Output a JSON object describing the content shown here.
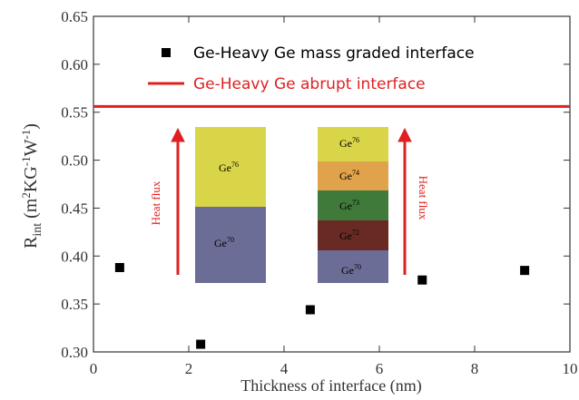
{
  "chart_data": {
    "type": "scatter",
    "x_label": "Thickness of interface (nm)",
    "y_label_parts": [
      "R",
      "int",
      " (m",
      "2",
      "KG",
      "-1",
      "W",
      "-1",
      ")"
    ],
    "series": [
      {
        "name": "Ge-Heavy Ge mass graded interface",
        "type": "scatter",
        "color": "#000000",
        "x": [
          0.55,
          2.25,
          4.55,
          6.9,
          9.05
        ],
        "values": [
          0.388,
          0.308,
          0.344,
          0.375,
          0.385
        ]
      },
      {
        "name": "Ge-Heavy Ge abrupt interface",
        "type": "hline",
        "color": "#e02020",
        "values": [
          0.556
        ]
      }
    ],
    "xlim": [
      0,
      10
    ],
    "xticks": [
      0,
      2,
      4,
      6,
      8,
      10
    ],
    "ylim": [
      0.3,
      0.65
    ],
    "yticks": [
      {
        "value": 0.3,
        "label": "0.30"
      },
      0.35,
      {
        "value": 0.4,
        "label": "0.40"
      },
      0.45,
      {
        "value": 0.5,
        "label": "0.50"
      },
      0.55,
      {
        "value": 0.6,
        "label": "0.60"
      },
      0.65
    ],
    "legend": "top",
    "annotations": [
      {
        "text": "Ge",
        "sup": "76"
      },
      {
        "text": "Ge",
        "sup": "70"
      },
      {
        "text": "Ge",
        "sup": "76"
      },
      {
        "text": "Ge",
        "sup": "74"
      },
      {
        "text": "Ge",
        "sup": "73"
      },
      {
        "text": "Ge",
        "sup": "72"
      },
      {
        "text": "Ge",
        "sup": "70"
      },
      {
        "text": "Heat flux"
      },
      {
        "text": "Heat flux"
      }
    ]
  }
}
